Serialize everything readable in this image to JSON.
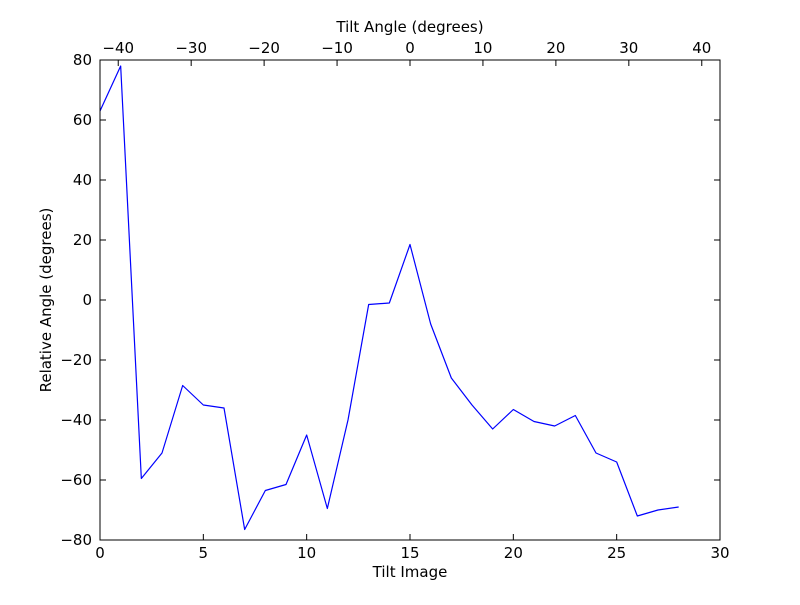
{
  "chart_data": {
    "type": "line",
    "xlabel": "Tilt Image",
    "ylabel": "Relative Angle (degrees)",
    "x2label": "Tilt Angle (degrees)",
    "xlim": [
      0,
      30
    ],
    "ylim": [
      -80,
      80
    ],
    "x2lim": [
      -42.5,
      42.5
    ],
    "xticks": [
      0,
      5,
      10,
      15,
      20,
      25,
      30
    ],
    "yticks": [
      -80,
      -60,
      -40,
      -20,
      0,
      20,
      40,
      60,
      80
    ],
    "x2ticks": [
      -40,
      -30,
      -20,
      -10,
      0,
      10,
      20,
      30,
      40
    ],
    "xtick_labels": [
      "0",
      "5",
      "10",
      "15",
      "20",
      "25",
      "30"
    ],
    "ytick_labels": [
      "−80",
      "−60",
      "−40",
      "−20",
      "0",
      "20",
      "40",
      "60",
      "80"
    ],
    "x2tick_labels": [
      "−40",
      "−30",
      "−20",
      "−10",
      "0",
      "10",
      "20",
      "30",
      "40"
    ],
    "grid": false,
    "series": [
      {
        "color": "#0000ff",
        "x": [
          0,
          1,
          2,
          3,
          4,
          5,
          6,
          7,
          8,
          9,
          10,
          11,
          12,
          13,
          14,
          15,
          16,
          17,
          18,
          19,
          20,
          21,
          22,
          23,
          24,
          25,
          26,
          27,
          28
        ],
        "y": [
          63,
          78,
          -59.5,
          -51,
          -28.5,
          -35,
          -36,
          -76.5,
          -63.5,
          -61.5,
          -45,
          -69.5,
          -40,
          -1.5,
          -1,
          18.5,
          -8,
          -26,
          -35,
          -43,
          -36.5,
          -40.5,
          -42,
          -38.5,
          -51,
          -54,
          -72,
          -70,
          -69
        ]
      }
    ]
  }
}
